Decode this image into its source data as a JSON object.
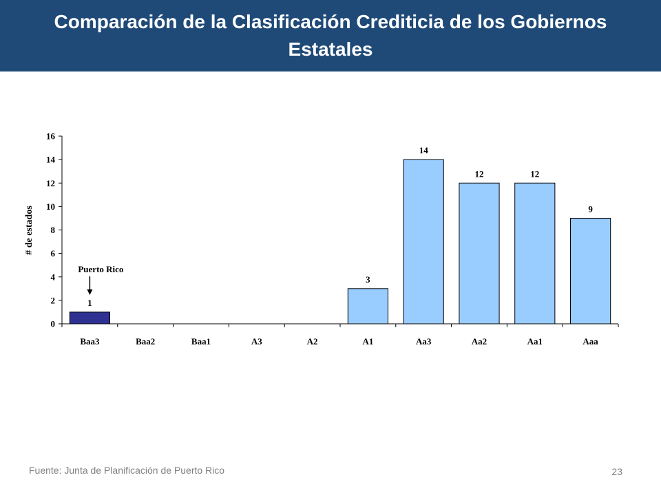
{
  "slide": {
    "title": "Comparación de la Clasificación Crediticia de los Gobiernos Estatales",
    "source": "Fuente: Junta de Planificación de Puerto Rico",
    "page_number": "23"
  },
  "chart_data": {
    "type": "bar",
    "ylabel": "# de estados",
    "xlabel": "",
    "categories": [
      "Baa3",
      "Baa2",
      "Baa1",
      "A3",
      "A2",
      "A1",
      "Aa3",
      "Aa2",
      "Aa1",
      "Aaa"
    ],
    "values": [
      1,
      0,
      0,
      0,
      0,
      3,
      14,
      12,
      12,
      9
    ],
    "data_labels": [
      "1",
      "",
      "",
      "",
      "",
      "3",
      "14",
      "12",
      "12",
      "9"
    ],
    "ylim": [
      0,
      16
    ],
    "yticks": [
      0,
      2,
      4,
      6,
      8,
      10,
      12,
      14,
      16
    ],
    "grid": false,
    "colors": {
      "highlight": "#2e3192",
      "default": "#99ccff",
      "outline": "#000000"
    },
    "highlight_index": 0,
    "annotation": {
      "text": "Puerto Rico",
      "category": "Baa3"
    }
  }
}
